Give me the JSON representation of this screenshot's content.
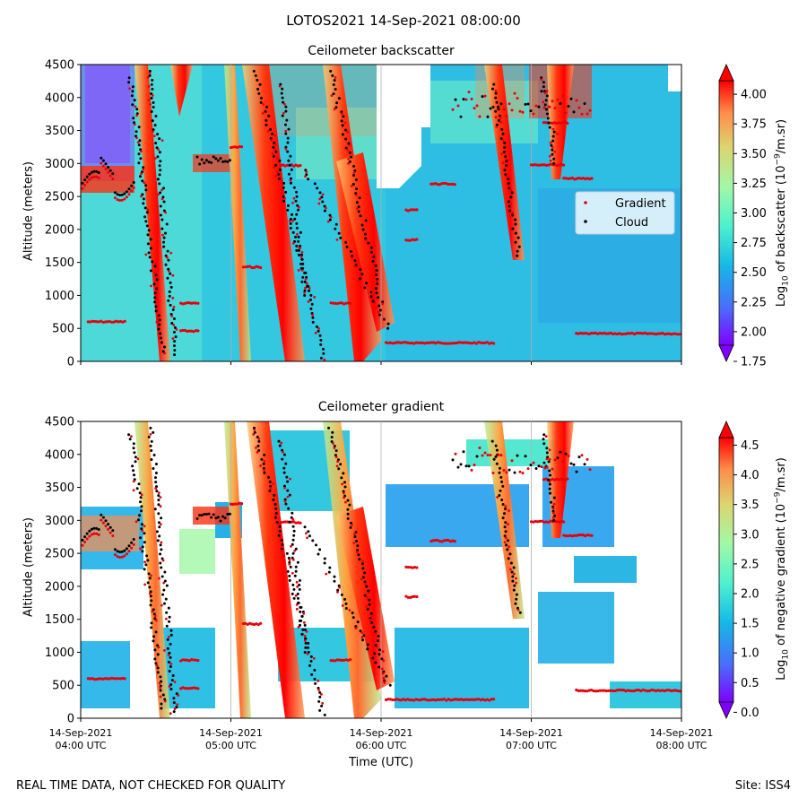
{
  "figure": {
    "suptitle": "LOTOS2021 14-Sep-2021 08:00:00",
    "footer_left": "REAL TIME DATA, NOT CHECKED FOR QUALITY",
    "footer_right": "Site: ISS4",
    "xlabel": "Time (UTC)"
  },
  "colors": {
    "gradient_marker": "#e8000b",
    "cloud_marker": "#000000",
    "background_panel": "#33c8e0",
    "colormap": [
      "#7f00ff",
      "#4a6cfb",
      "#15b8e6",
      "#4cf2ce",
      "#a2f8a6",
      "#dcd46f",
      "#ff8c4a",
      "#ff0000"
    ]
  },
  "chart_data": [
    {
      "type": "heatmap",
      "title": "Ceilometer backscatter",
      "ylabel": "Altitude (meters)",
      "ylim": [
        0,
        4500
      ],
      "yticks": [
        "0",
        "500",
        "1000",
        "1500",
        "2000",
        "2500",
        "3000",
        "3500",
        "4000",
        "4500"
      ],
      "x_range": [
        "2021-09-14T04:00",
        "2021-09-14T08:00"
      ],
      "colorbar": {
        "label": "Log10 of backscatter (10^-9/m.sr)",
        "range": [
          1.75,
          4.25
        ],
        "ticks": [
          "1.75",
          "2.00",
          "2.25",
          "2.50",
          "2.75",
          "3.00",
          "3.25",
          "3.50",
          "3.75",
          "4.00"
        ]
      },
      "legend": {
        "placement": "right",
        "entries": [
          "Gradient",
          "Cloud"
        ]
      },
      "grid": true
    },
    {
      "type": "heatmap",
      "title": "Ceilometer gradient",
      "ylabel": "Altitude (meters)",
      "ylim": [
        0,
        4500
      ],
      "yticks": [
        "0",
        "500",
        "1000",
        "1500",
        "2000",
        "2500",
        "3000",
        "3500",
        "4000",
        "4500"
      ],
      "x_range": [
        "2021-09-14T04:00",
        "2021-09-14T08:00"
      ],
      "xticks": [
        [
          "14-Sep-2021",
          "04:00 UTC"
        ],
        [
          "14-Sep-2021",
          "05:00 UTC"
        ],
        [
          "14-Sep-2021",
          "06:00 UTC"
        ],
        [
          "14-Sep-2021",
          "07:00 UTC"
        ],
        [
          "14-Sep-2021",
          "08:00 UTC"
        ]
      ],
      "colorbar": {
        "label": "Log10 of negative gradient (10^-9/m.sr)",
        "range": [
          -0.1,
          4.9
        ],
        "ticks": [
          "0.0",
          "0.5",
          "1.0",
          "1.5",
          "2.0",
          "2.5",
          "3.0",
          "3.5",
          "4.0",
          "4.5"
        ]
      },
      "grid": true
    }
  ],
  "series": {
    "gradient_layers": [
      {
        "t0": "04:03",
        "t1": "04:18",
        "alt": 600
      },
      {
        "t0": "05:05",
        "t1": "05:12",
        "alt": 1430
      },
      {
        "t0": "05:40",
        "t1": "05:48",
        "alt": 880
      },
      {
        "t0": "05:20",
        "t1": "05:28",
        "alt": 2970
      },
      {
        "t0": "06:02",
        "t1": "06:45",
        "alt": 280
      },
      {
        "t0": "06:20",
        "t1": "06:30",
        "alt": 2690
      },
      {
        "t0": "06:10",
        "t1": "06:15",
        "alt": 2290
      },
      {
        "t0": "06:10",
        "t1": "06:15",
        "alt": 1840
      },
      {
        "t0": "07:18",
        "t1": "08:00",
        "alt": 420
      },
      {
        "t0": "07:05",
        "t1": "07:15",
        "alt": 3620
      },
      {
        "t0": "07:00",
        "t1": "07:13",
        "alt": 2980
      },
      {
        "t0": "07:13",
        "t1": "07:25",
        "alt": 2770
      },
      {
        "t0": "05:00",
        "t1": "05:05",
        "alt": 3250
      },
      {
        "t0": "04:40",
        "t1": "04:47",
        "alt": 880
      },
      {
        "t0": "04:40",
        "t1": "04:47",
        "alt": 460
      }
    ],
    "cloud_streaks": [
      {
        "t0": "04:20",
        "a0": 4300,
        "t1": "04:33",
        "a1": 150
      },
      {
        "t0": "04:28",
        "a0": 4400,
        "t1": "04:38",
        "a1": 100
      },
      {
        "t0": "05:10",
        "a0": 4400,
        "t1": "05:37",
        "a1": 50
      },
      {
        "t0": "05:20",
        "a0": 4200,
        "t1": "05:30",
        "a1": 1000
      },
      {
        "t0": "05:30",
        "a0": 2900,
        "t1": "06:03",
        "a1": 500
      },
      {
        "t0": "05:40",
        "a0": 4400,
        "t1": "06:00",
        "a1": 900
      },
      {
        "t0": "06:45",
        "a0": 4200,
        "t1": "06:55",
        "a1": 1600
      },
      {
        "t0": "07:05",
        "a0": 4300,
        "t1": "07:10",
        "a1": 3000
      }
    ]
  }
}
